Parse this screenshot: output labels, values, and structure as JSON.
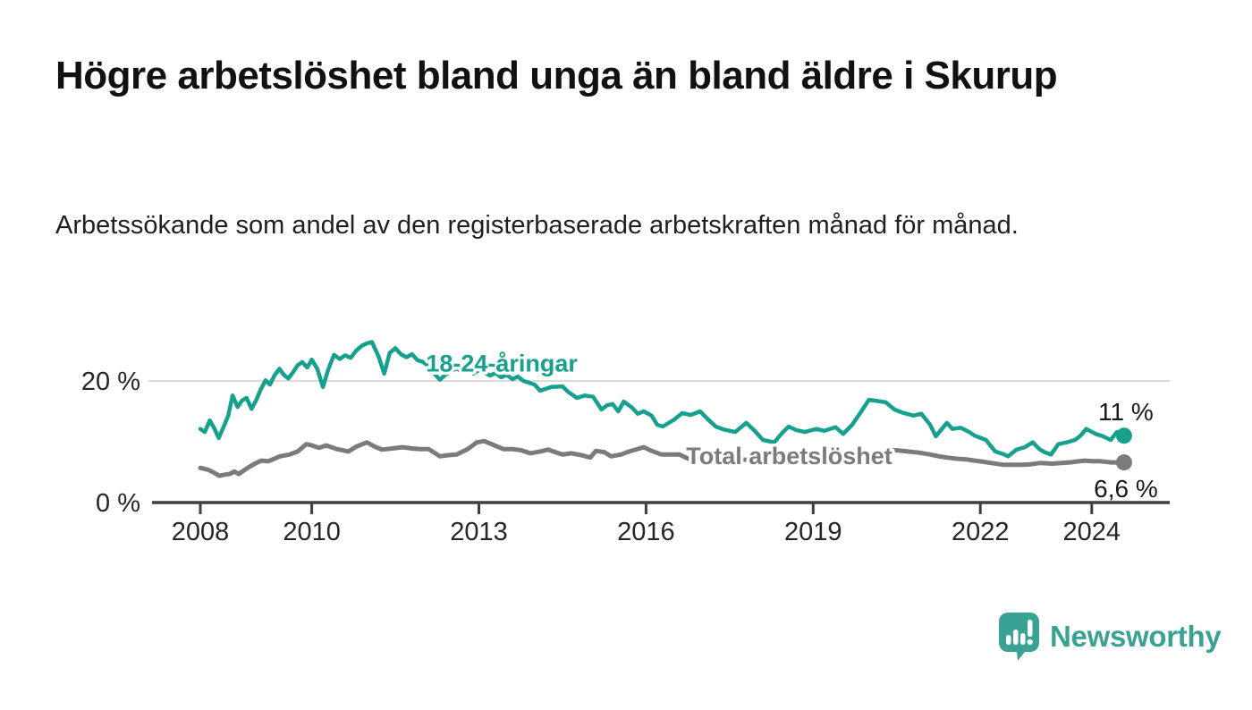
{
  "header": {
    "title": "Högre arbetslöshet bland unga än bland äldre i Skurup",
    "subtitle": "Arbetssökande som andel av den registerbaserade arbetskraften månad för månad."
  },
  "chart_data": {
    "type": "line",
    "title": "Högre arbetslöshet bland unga än bland äldre i Skurup",
    "xlabel": "",
    "ylabel": "",
    "unit": "%",
    "x_axis": {
      "ticks": [
        2008,
        2010,
        2013,
        2016,
        2019,
        2022,
        2024
      ],
      "range_years": [
        2007.9,
        2025.2
      ]
    },
    "y_axis": {
      "ticks": [
        {
          "value": 20,
          "label": "20 %",
          "grid": true
        },
        {
          "value": 0,
          "label": "0 %",
          "grid": false
        }
      ],
      "range": [
        0,
        27
      ]
    },
    "grid": "horizontal-only",
    "legend": "inline-labels",
    "axis_color": "#3f3f3f",
    "grid_color": "#dadada",
    "tick_text_color": "#262626",
    "end_label_color": "#1a1a1a",
    "series": [
      {
        "name": "18-24-åringar",
        "color": "#16a08e",
        "stroke_width": 4.5,
        "label": {
          "text": "18-24-åringar",
          "x": 2012.05,
          "y": 22.6
        },
        "end": {
          "label": "11 %",
          "value": 11.0,
          "side": "above"
        },
        "points": [
          [
            2008.0,
            12.1
          ],
          [
            2008.08,
            11.6
          ],
          [
            2008.17,
            13.5
          ],
          [
            2008.25,
            12.2
          ],
          [
            2008.33,
            10.6
          ],
          [
            2008.42,
            12.5
          ],
          [
            2008.5,
            14.3
          ],
          [
            2008.58,
            17.6
          ],
          [
            2008.67,
            15.7
          ],
          [
            2008.75,
            16.8
          ],
          [
            2008.83,
            17.2
          ],
          [
            2008.92,
            15.4
          ],
          [
            2009.0,
            16.8
          ],
          [
            2009.08,
            18.5
          ],
          [
            2009.17,
            20.1
          ],
          [
            2009.25,
            19.4
          ],
          [
            2009.33,
            20.9
          ],
          [
            2009.42,
            22.0
          ],
          [
            2009.5,
            21.0
          ],
          [
            2009.58,
            20.4
          ],
          [
            2009.67,
            21.5
          ],
          [
            2009.75,
            22.6
          ],
          [
            2009.83,
            23.1
          ],
          [
            2009.92,
            22.2
          ],
          [
            2010.0,
            23.5
          ],
          [
            2010.1,
            22.0
          ],
          [
            2010.2,
            19.0
          ],
          [
            2010.3,
            22.0
          ],
          [
            2010.4,
            24.3
          ],
          [
            2010.5,
            23.6
          ],
          [
            2010.6,
            24.2
          ],
          [
            2010.7,
            23.8
          ],
          [
            2010.8,
            25.0
          ],
          [
            2010.9,
            25.8
          ],
          [
            2011.0,
            26.2
          ],
          [
            2011.08,
            26.4
          ],
          [
            2011.2,
            24.0
          ],
          [
            2011.3,
            21.2
          ],
          [
            2011.4,
            24.6
          ],
          [
            2011.5,
            25.4
          ],
          [
            2011.6,
            24.4
          ],
          [
            2011.7,
            23.9
          ],
          [
            2011.8,
            24.4
          ],
          [
            2011.9,
            23.4
          ],
          [
            2012.0,
            23.1
          ],
          [
            2012.1,
            22.4
          ],
          [
            2012.2,
            21.2
          ],
          [
            2012.3,
            20.2
          ],
          [
            2012.4,
            21.0
          ],
          [
            2012.5,
            21.6
          ],
          [
            2012.6,
            22.1
          ],
          [
            2012.7,
            21.4
          ],
          [
            2012.8,
            22.0
          ],
          [
            2012.9,
            21.2
          ],
          [
            2013.0,
            21.8
          ],
          [
            2013.1,
            21.4
          ],
          [
            2013.2,
            20.9
          ],
          [
            2013.3,
            21.3
          ],
          [
            2013.4,
            20.6
          ],
          [
            2013.5,
            21.0
          ],
          [
            2013.6,
            20.3
          ],
          [
            2013.7,
            20.7
          ],
          [
            2013.8,
            20.0
          ],
          [
            2013.9,
            19.7
          ],
          [
            2014.0,
            19.4
          ],
          [
            2014.1,
            18.4
          ],
          [
            2014.3,
            19.0
          ],
          [
            2014.5,
            19.1
          ],
          [
            2014.6,
            18.2
          ],
          [
            2014.76,
            17.2
          ],
          [
            2014.9,
            17.6
          ],
          [
            2015.05,
            17.4
          ],
          [
            2015.2,
            15.3
          ],
          [
            2015.3,
            16.0
          ],
          [
            2015.4,
            16.2
          ],
          [
            2015.5,
            15.0
          ],
          [
            2015.6,
            16.6
          ],
          [
            2015.75,
            15.6
          ],
          [
            2015.85,
            14.6
          ],
          [
            2015.96,
            15.0
          ],
          [
            2016.1,
            14.3
          ],
          [
            2016.2,
            12.8
          ],
          [
            2016.3,
            12.5
          ],
          [
            2016.5,
            13.6
          ],
          [
            2016.65,
            14.7
          ],
          [
            2016.8,
            14.4
          ],
          [
            2016.97,
            15.0
          ],
          [
            2017.1,
            13.8
          ],
          [
            2017.25,
            12.5
          ],
          [
            2017.4,
            12.0
          ],
          [
            2017.6,
            11.6
          ],
          [
            2017.8,
            13.1
          ],
          [
            2017.95,
            11.8
          ],
          [
            2018.1,
            10.3
          ],
          [
            2018.3,
            9.9
          ],
          [
            2018.45,
            11.5
          ],
          [
            2018.56,
            12.5
          ],
          [
            2018.7,
            11.9
          ],
          [
            2018.85,
            11.6
          ],
          [
            2019.06,
            12.1
          ],
          [
            2019.2,
            11.8
          ],
          [
            2019.4,
            12.4
          ],
          [
            2019.54,
            11.3
          ],
          [
            2019.7,
            12.8
          ],
          [
            2019.85,
            14.8
          ],
          [
            2020.0,
            16.9
          ],
          [
            2020.15,
            16.7
          ],
          [
            2020.3,
            16.5
          ],
          [
            2020.46,
            15.3
          ],
          [
            2020.6,
            14.8
          ],
          [
            2020.8,
            14.3
          ],
          [
            2020.94,
            14.6
          ],
          [
            2021.1,
            12.8
          ],
          [
            2021.2,
            10.9
          ],
          [
            2021.4,
            13.1
          ],
          [
            2021.5,
            12.1
          ],
          [
            2021.65,
            12.3
          ],
          [
            2021.8,
            11.6
          ],
          [
            2021.9,
            11.0
          ],
          [
            2022.1,
            10.3
          ],
          [
            2022.27,
            8.4
          ],
          [
            2022.4,
            8.0
          ],
          [
            2022.5,
            7.6
          ],
          [
            2022.65,
            8.7
          ],
          [
            2022.8,
            9.1
          ],
          [
            2022.94,
            9.9
          ],
          [
            2023.06,
            8.8
          ],
          [
            2023.15,
            8.3
          ],
          [
            2023.27,
            7.9
          ],
          [
            2023.4,
            9.6
          ],
          [
            2023.55,
            9.9
          ],
          [
            2023.7,
            10.3
          ],
          [
            2023.8,
            11.0
          ],
          [
            2023.9,
            12.1
          ],
          [
            2024.07,
            11.3
          ],
          [
            2024.2,
            10.9
          ],
          [
            2024.34,
            10.3
          ],
          [
            2024.45,
            11.6
          ],
          [
            2024.58,
            11.0
          ]
        ]
      },
      {
        "name": "Total arbetslöshet",
        "color": "#7b7b7b",
        "stroke_width": 5,
        "label": {
          "text": "Total arbetslöshet",
          "x": 2016.72,
          "y": 7.4
        },
        "end": {
          "label": "6,6 %",
          "value": 6.6,
          "side": "below"
        },
        "points": [
          [
            2008.0,
            5.7
          ],
          [
            2008.14,
            5.4
          ],
          [
            2008.25,
            4.9
          ],
          [
            2008.34,
            4.4
          ],
          [
            2008.45,
            4.6
          ],
          [
            2008.53,
            4.7
          ],
          [
            2008.61,
            5.1
          ],
          [
            2008.69,
            4.7
          ],
          [
            2008.85,
            5.7
          ],
          [
            2009.0,
            6.5
          ],
          [
            2009.1,
            6.9
          ],
          [
            2009.22,
            6.8
          ],
          [
            2009.33,
            7.2
          ],
          [
            2009.43,
            7.6
          ],
          [
            2009.6,
            7.9
          ],
          [
            2009.75,
            8.4
          ],
          [
            2009.9,
            9.6
          ],
          [
            2010.0,
            9.4
          ],
          [
            2010.13,
            9.0
          ],
          [
            2010.26,
            9.4
          ],
          [
            2010.45,
            8.8
          ],
          [
            2010.66,
            8.4
          ],
          [
            2010.8,
            9.2
          ],
          [
            2010.99,
            9.9
          ],
          [
            2011.13,
            9.2
          ],
          [
            2011.26,
            8.7
          ],
          [
            2011.45,
            8.9
          ],
          [
            2011.63,
            9.1
          ],
          [
            2011.8,
            8.9
          ],
          [
            2011.95,
            8.8
          ],
          [
            2012.1,
            8.8
          ],
          [
            2012.3,
            7.6
          ],
          [
            2012.45,
            7.8
          ],
          [
            2012.6,
            7.9
          ],
          [
            2012.8,
            8.8
          ],
          [
            2012.96,
            9.9
          ],
          [
            2013.1,
            10.1
          ],
          [
            2013.28,
            9.4
          ],
          [
            2013.44,
            8.8
          ],
          [
            2013.6,
            8.8
          ],
          [
            2013.76,
            8.6
          ],
          [
            2013.92,
            8.1
          ],
          [
            2014.1,
            8.4
          ],
          [
            2014.24,
            8.7
          ],
          [
            2014.4,
            8.2
          ],
          [
            2014.5,
            7.9
          ],
          [
            2014.66,
            8.1
          ],
          [
            2014.84,
            7.8
          ],
          [
            2015.0,
            7.4
          ],
          [
            2015.1,
            8.5
          ],
          [
            2015.25,
            8.3
          ],
          [
            2015.37,
            7.6
          ],
          [
            2015.55,
            7.9
          ],
          [
            2015.7,
            8.4
          ],
          [
            2015.96,
            9.1
          ],
          [
            2016.1,
            8.5
          ],
          [
            2016.28,
            7.9
          ],
          [
            2016.45,
            7.9
          ],
          [
            2016.6,
            7.9
          ],
          [
            2016.76,
            7.2
          ],
          [
            2016.9,
            7.4
          ],
          [
            2017.08,
            7.6
          ],
          [
            2017.3,
            7.3
          ],
          [
            2017.6,
            7.1
          ],
          [
            2017.9,
            7.0
          ],
          [
            2018.2,
            6.9
          ],
          [
            2018.5,
            6.8
          ],
          [
            2018.8,
            6.9
          ],
          [
            2019.1,
            7.0
          ],
          [
            2019.4,
            7.1
          ],
          [
            2019.7,
            7.2
          ],
          [
            2019.9,
            7.4
          ],
          [
            2020.1,
            8.0
          ],
          [
            2020.3,
            8.5
          ],
          [
            2020.5,
            8.6
          ],
          [
            2020.7,
            8.4
          ],
          [
            2020.9,
            8.2
          ],
          [
            2021.1,
            7.9
          ],
          [
            2021.26,
            7.6
          ],
          [
            2021.4,
            7.4
          ],
          [
            2021.58,
            7.2
          ],
          [
            2021.75,
            7.1
          ],
          [
            2021.9,
            6.9
          ],
          [
            2022.05,
            6.7
          ],
          [
            2022.2,
            6.5
          ],
          [
            2022.42,
            6.2
          ],
          [
            2022.6,
            6.2
          ],
          [
            2022.75,
            6.2
          ],
          [
            2022.9,
            6.3
          ],
          [
            2023.07,
            6.5
          ],
          [
            2023.3,
            6.4
          ],
          [
            2023.45,
            6.5
          ],
          [
            2023.6,
            6.6
          ],
          [
            2023.87,
            6.9
          ],
          [
            2024.0,
            6.8
          ],
          [
            2024.14,
            6.8
          ],
          [
            2024.35,
            6.6
          ],
          [
            2024.58,
            6.6
          ]
        ]
      }
    ]
  },
  "footer": {
    "logo_text": "Newsworthy",
    "logo_color": "#3aa295"
  }
}
